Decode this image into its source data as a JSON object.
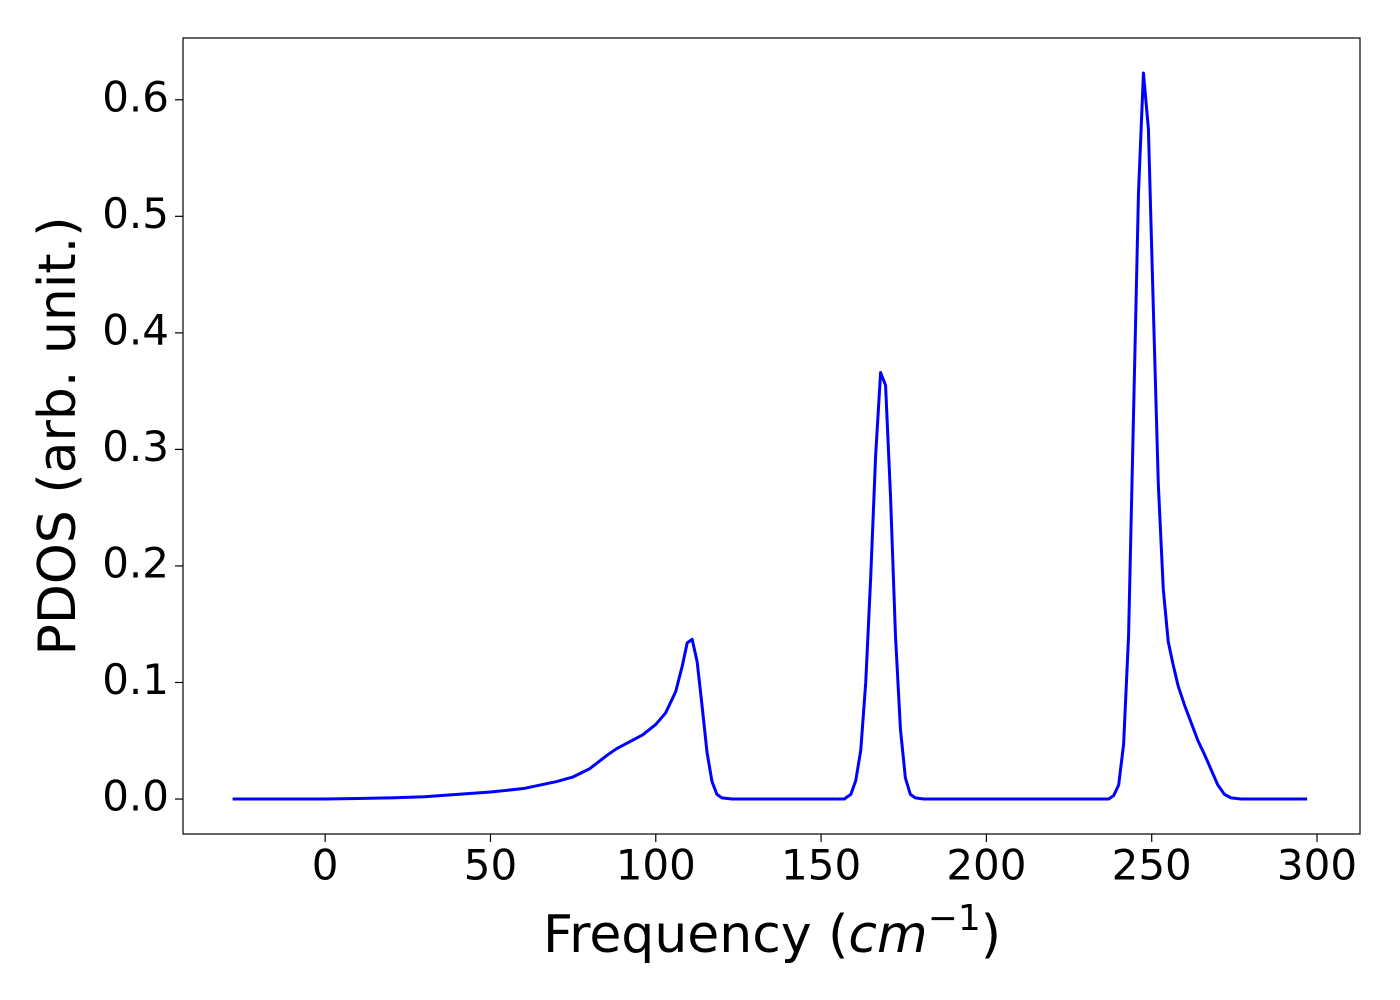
{
  "chart_data": {
    "type": "line",
    "xlabel": [
      "Frequency (",
      "cm",
      "−1",
      ")"
    ],
    "ylabel": "PDOS (arb. unit.)",
    "x": [
      -28,
      -10,
      0,
      10,
      20,
      30,
      40,
      50,
      60,
      70,
      75,
      80,
      85,
      88,
      92,
      96,
      100,
      103,
      106,
      108,
      109.5,
      111,
      112.5,
      114,
      115.5,
      117,
      118.5,
      120,
      123,
      150,
      157,
      159,
      160.5,
      162,
      163.5,
      165,
      166.5,
      168,
      169.5,
      171,
      172.5,
      174,
      175.5,
      177,
      178.5,
      181,
      237,
      238.5,
      240,
      241.5,
      243,
      244.5,
      246,
      247.5,
      249,
      250.5,
      252,
      253.5,
      255,
      256.5,
      258,
      260,
      262,
      264,
      266,
      268,
      270,
      272,
      274,
      277,
      297
    ],
    "series": [
      {
        "color": "#0000ff",
        "values": [
          0,
          0,
          0,
          0.0005,
          0.001,
          0.002,
          0.004,
          0.006,
          0.009,
          0.015,
          0.019,
          0.026,
          0.037,
          0.043,
          0.049,
          0.055,
          0.064,
          0.074,
          0.092,
          0.114,
          0.134,
          0.137,
          0.118,
          0.08,
          0.04,
          0.015,
          0.004,
          0.001,
          0,
          0,
          0,
          0.004,
          0.016,
          0.042,
          0.1,
          0.19,
          0.295,
          0.366,
          0.355,
          0.26,
          0.14,
          0.06,
          0.018,
          0.004,
          0.001,
          0,
          0,
          0.003,
          0.012,
          0.047,
          0.14,
          0.33,
          0.52,
          0.623,
          0.575,
          0.42,
          0.27,
          0.18,
          0.135,
          0.115,
          0.097,
          0.08,
          0.065,
          0.05,
          0.038,
          0.025,
          0.012,
          0.004,
          0.001,
          0,
          0
        ]
      }
    ],
    "xlim": [
      -43,
      313
    ],
    "ylim": [
      -0.03,
      0.653
    ],
    "xticks": [
      0,
      50,
      100,
      150,
      200,
      250,
      300
    ],
    "yticks": [
      {
        "value": 0,
        "label": "0.0"
      },
      0.1,
      0.2,
      0.3,
      0.4,
      0.5,
      0.6
    ]
  }
}
